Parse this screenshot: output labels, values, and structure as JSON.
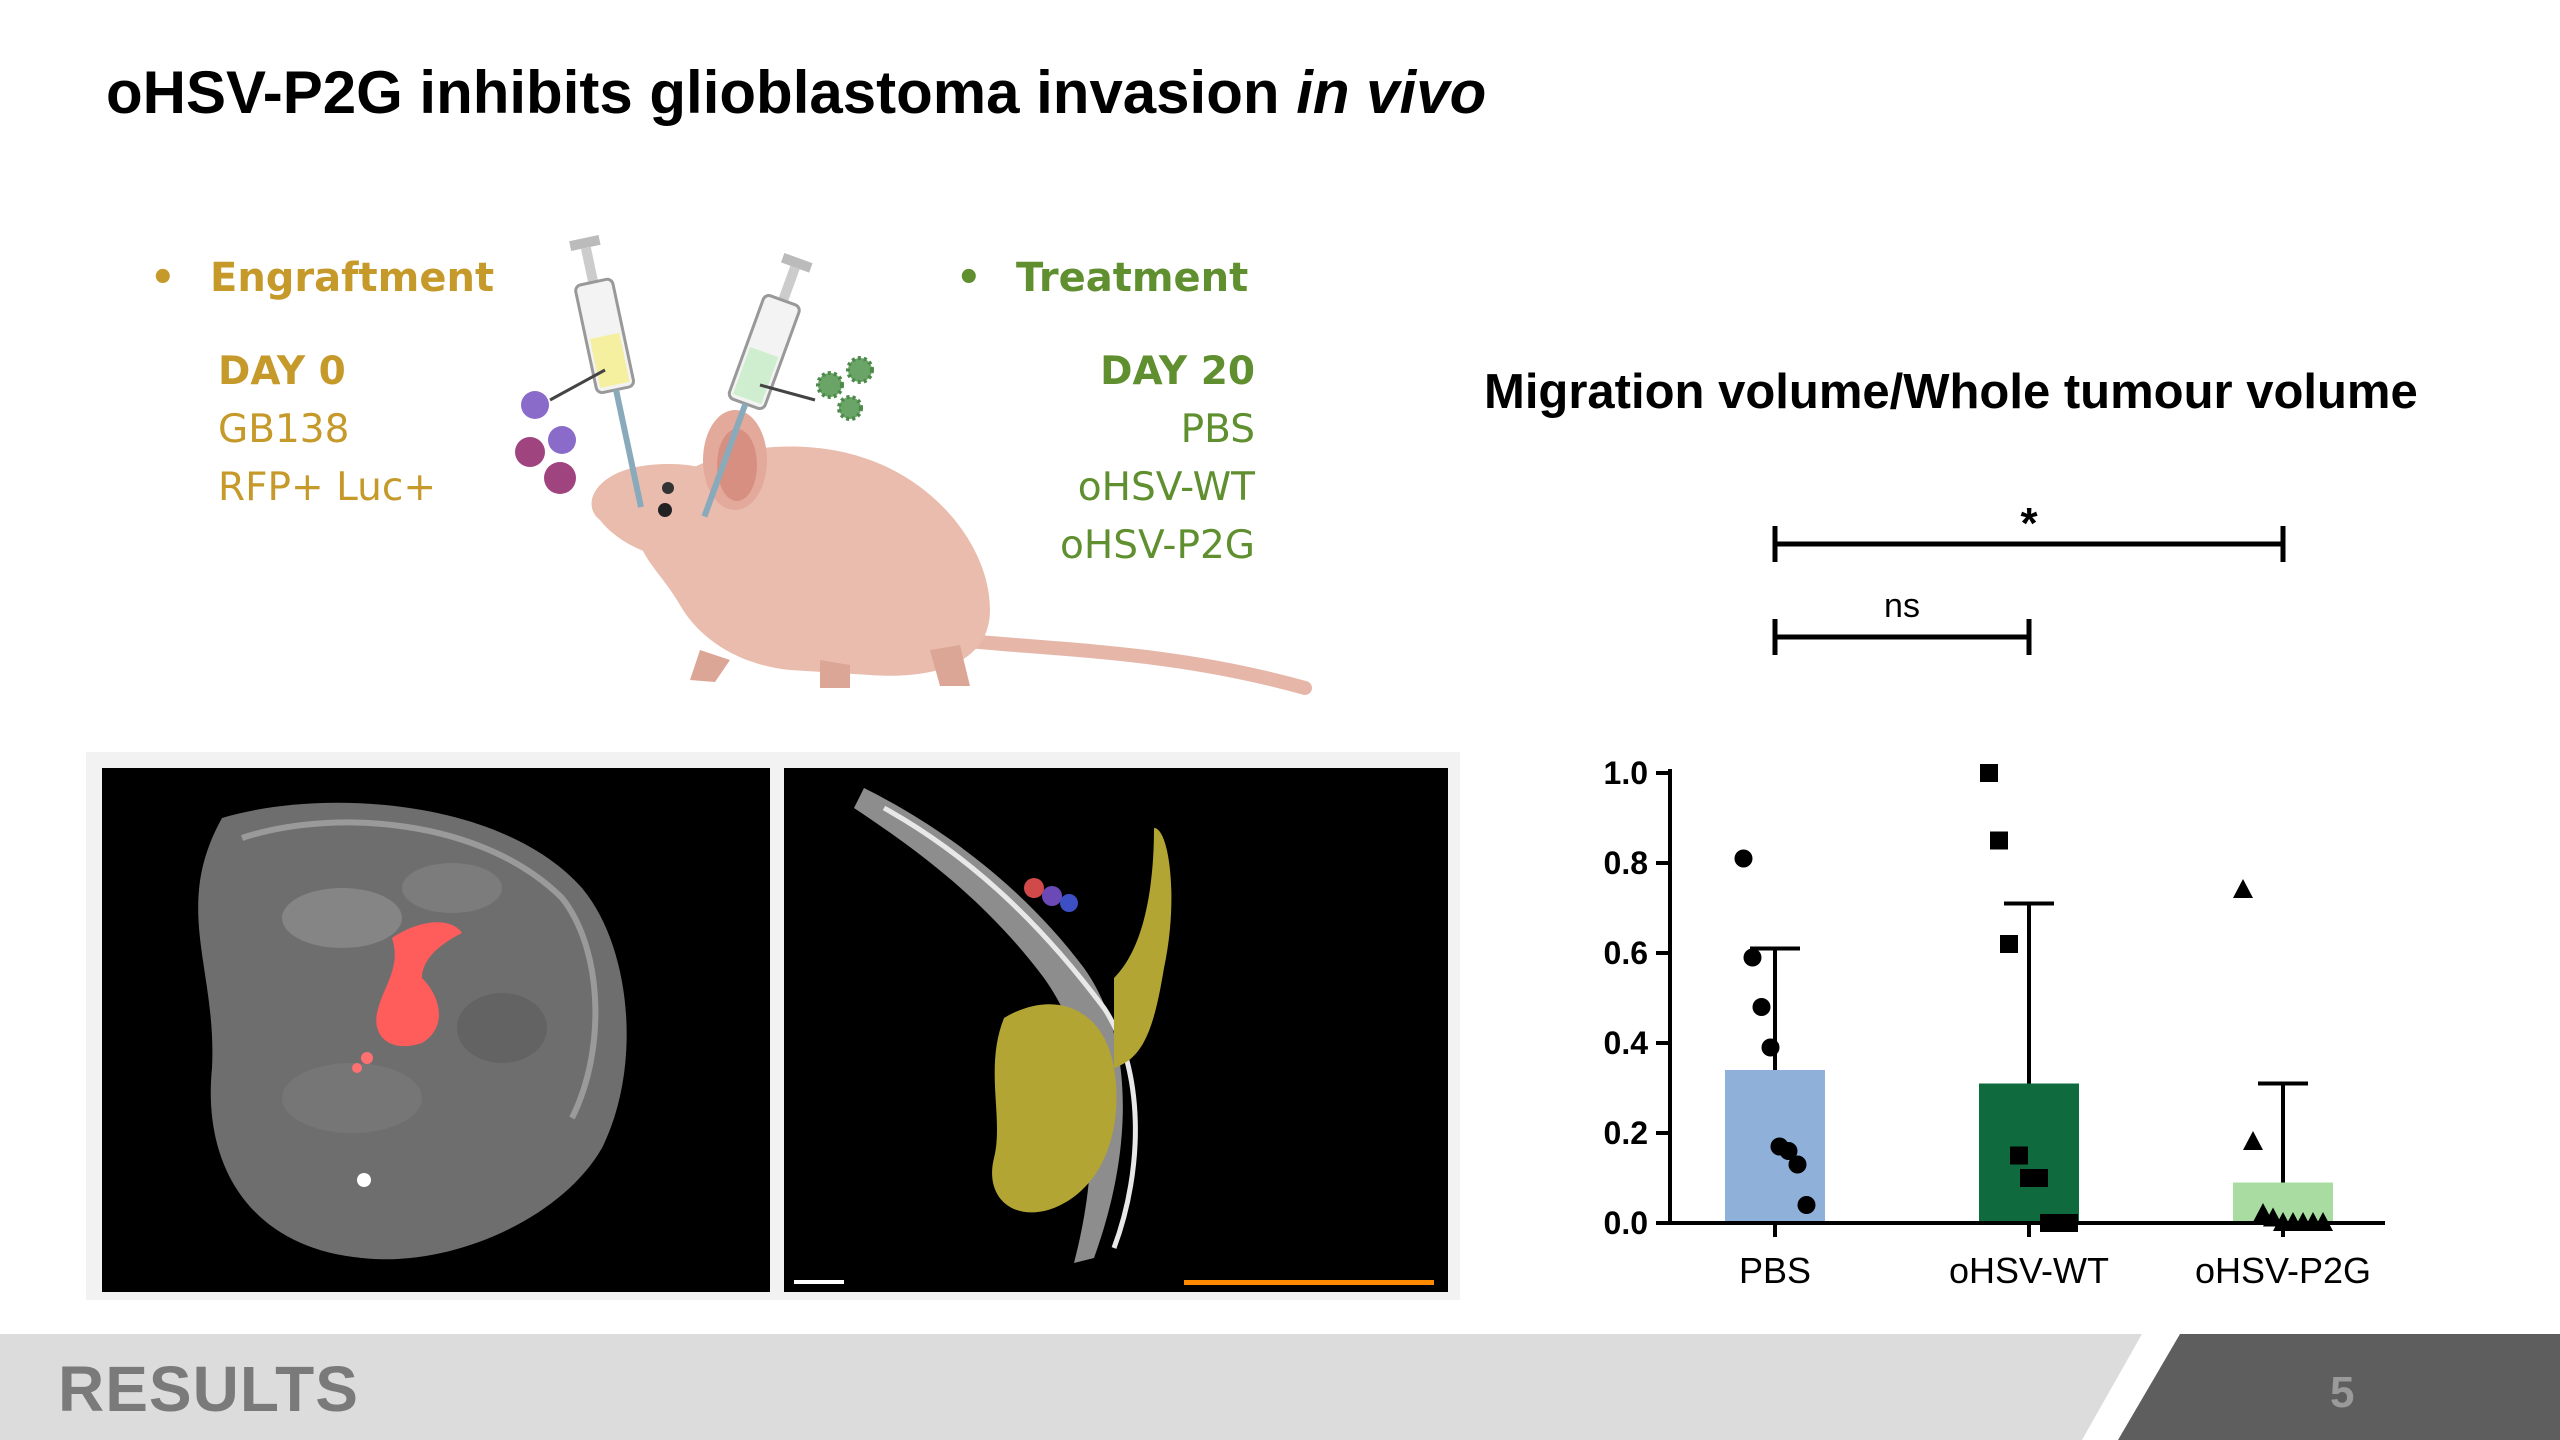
{
  "slide": {
    "title_main": "oHSV-P2G inhibits glioblastoma invasion ",
    "title_italic": "in vivo",
    "footer_label": "RESULTS",
    "page_number": "5"
  },
  "engraftment": {
    "heading": "Engraftment",
    "day": "DAY 0",
    "line1": "GB138",
    "line2": "RFP+ Luc+"
  },
  "treatment": {
    "heading": "Treatment",
    "day": "DAY 20",
    "items": [
      "PBS",
      "oHSV-WT",
      "oHSV-P2G"
    ]
  },
  "colors": {
    "engraftment_gold": "#c69a2a",
    "treatment_green": "#5f8f2f",
    "pbs_bar": "#8fb0d9",
    "wt_bar": "#0f6a3e",
    "p2g_bar": "#a8dca0",
    "tumour_red": "#ff5c5c",
    "tumour_yellow": "#b3a534"
  },
  "chart_data": {
    "type": "bar",
    "title": "Migration volume/Whole tumour volume",
    "xlabel": "",
    "ylabel": "",
    "categories": [
      "PBS",
      "oHSV-WT",
      "oHSV-P2G"
    ],
    "values": [
      0.34,
      0.31,
      0.09
    ],
    "error_upper": [
      0.61,
      0.71,
      0.31
    ],
    "ylim": [
      0,
      1.0
    ],
    "yticks": [
      "0.0",
      "0.2",
      "0.4",
      "0.6",
      "0.8",
      "1.0"
    ],
    "points": [
      [
        0.81,
        0.59,
        0.48,
        0.39,
        0.17,
        0.16,
        0.13,
        0.04
      ],
      [
        1.0,
        0.85,
        0.62,
        0.15,
        0.1,
        0.1,
        0.0,
        0.0,
        0.0
      ],
      [
        0.74,
        0.18,
        0.02,
        0.01,
        0.0,
        0.0,
        0.0,
        0.0,
        0.0
      ]
    ],
    "marker_shapes": [
      "circle",
      "square",
      "triangle"
    ],
    "significance": [
      {
        "from": 0,
        "to": 2,
        "label": "*"
      },
      {
        "from": 0,
        "to": 1,
        "label": "ns"
      }
    ]
  }
}
